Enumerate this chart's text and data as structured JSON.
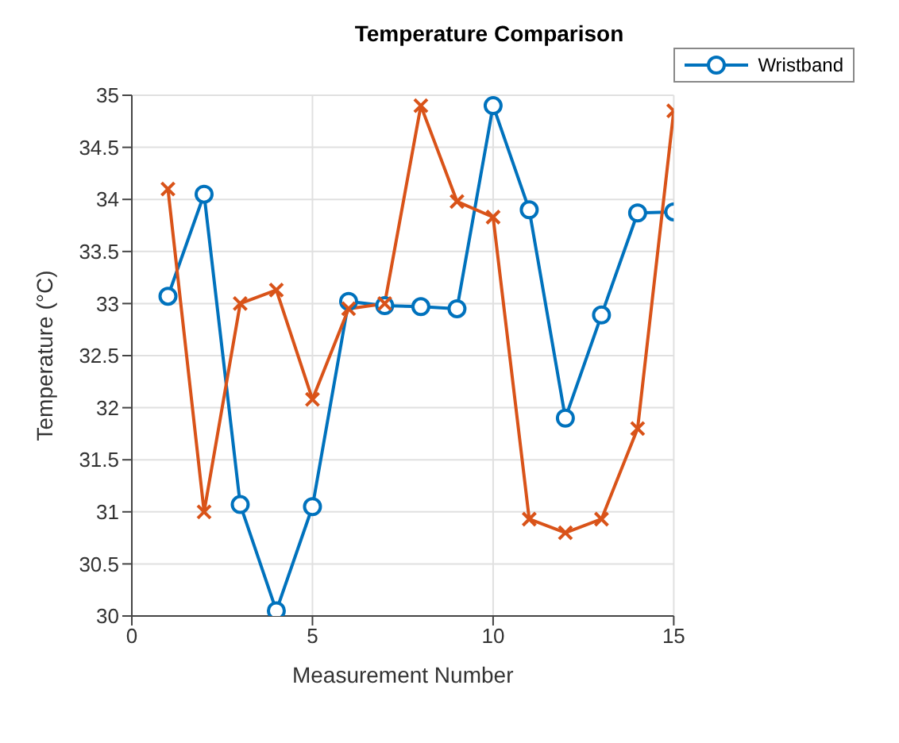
{
  "chart_data": {
    "type": "line",
    "title": "Temperature Comparison",
    "xlabel": "Measurement Number",
    "ylabel": "Temperature (°C)",
    "x": [
      1,
      2,
      3,
      4,
      5,
      6,
      7,
      8,
      9,
      10,
      11,
      12,
      13,
      14,
      15
    ],
    "series": [
      {
        "name": "Wristband",
        "color": "#0072bd",
        "marker": "circle",
        "values": [
          33.07,
          34.05,
          31.07,
          30.05,
          31.05,
          33.02,
          32.98,
          32.97,
          32.95,
          34.9,
          33.9,
          31.9,
          32.89,
          33.87,
          33.88
        ]
      },
      {
        "color": "#d95319",
        "marker": "cross",
        "values": [
          34.1,
          31.0,
          33.0,
          33.13,
          32.08,
          32.95,
          33.0,
          34.9,
          33.98,
          33.83,
          30.93,
          30.8,
          30.93,
          31.8,
          34.85
        ]
      }
    ],
    "xlim": [
      0,
      15
    ],
    "xticks": [
      0,
      5,
      10,
      15
    ],
    "ylim": [
      30,
      35
    ],
    "yticks": [
      30,
      30.5,
      31,
      31.5,
      32,
      32.5,
      33,
      33.5,
      34,
      34.5,
      35
    ],
    "grid": true,
    "legend": "top right",
    "line_style": "solid"
  }
}
